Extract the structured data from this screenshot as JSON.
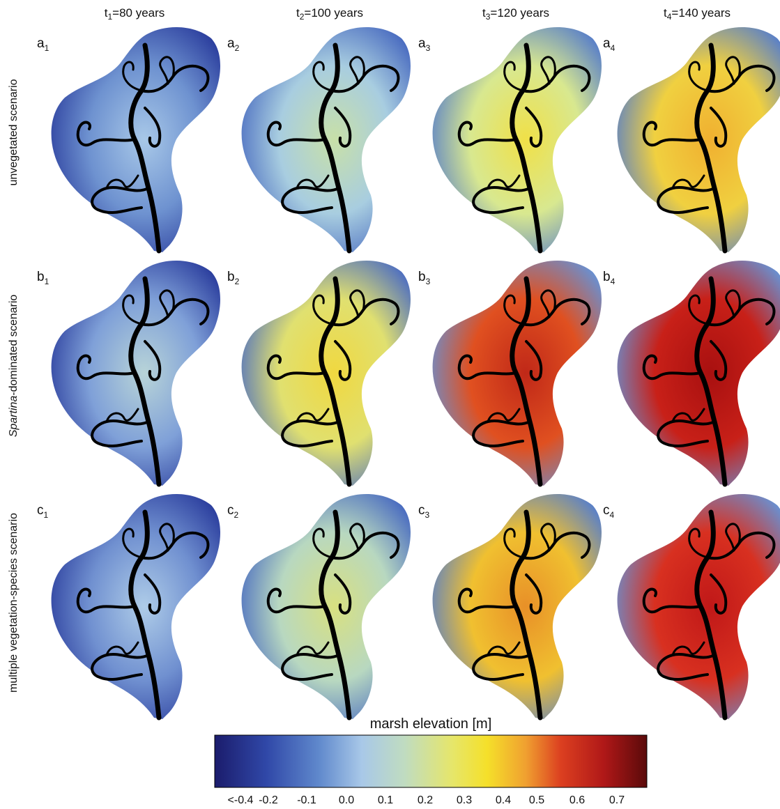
{
  "columns": [
    {
      "t": "t",
      "sub": "1",
      "text": "=80 years"
    },
    {
      "t": "t",
      "sub": "2",
      "text": "=100 years"
    },
    {
      "t": "t",
      "sub": "3",
      "text": "=120 years"
    },
    {
      "t": "t",
      "sub": "4",
      "text": "=140 years"
    }
  ],
  "rows": [
    {
      "italic": "",
      "text": "unvegetated scenario"
    },
    {
      "italic": "Spartina",
      "text": "-dominated scenario"
    },
    {
      "italic": "",
      "text": "multiple vegetation-species scenario"
    }
  ],
  "panels": [
    [
      {
        "letter": "a",
        "sub": "1"
      },
      {
        "letter": "a",
        "sub": "2"
      },
      {
        "letter": "a",
        "sub": "3"
      },
      {
        "letter": "a",
        "sub": "4"
      }
    ],
    [
      {
        "letter": "b",
        "sub": "1"
      },
      {
        "letter": "b",
        "sub": "2"
      },
      {
        "letter": "b",
        "sub": "3"
      },
      {
        "letter": "b",
        "sub": "4"
      }
    ],
    [
      {
        "letter": "c",
        "sub": "1"
      },
      {
        "letter": "c",
        "sub": "2"
      },
      {
        "letter": "c",
        "sub": "3"
      },
      {
        "letter": "c",
        "sub": "4"
      }
    ]
  ],
  "colorbar": {
    "title": "marsh elevation [m]",
    "ticks": [
      "<-0.4",
      "-0.2",
      "-0.1",
      "0.0",
      "0.1",
      "0.2",
      "0.3",
      "0.4",
      "0.5",
      "0.6",
      "0.7"
    ]
  }
}
